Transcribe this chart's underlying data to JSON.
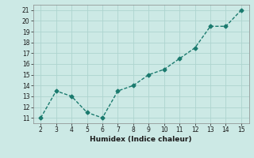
{
  "x": [
    2,
    3,
    4,
    5,
    6,
    7,
    8,
    9,
    10,
    11,
    12,
    13,
    14,
    15
  ],
  "y": [
    11,
    13.5,
    13,
    11.5,
    11,
    13.5,
    14,
    15,
    15.5,
    16.5,
    17.5,
    19.5,
    19.5,
    21
  ],
  "color": "#1a7a6e",
  "xlabel": "Humidex (Indice chaleur)",
  "xlim": [
    1.5,
    15.5
  ],
  "ylim": [
    10.5,
    21.5
  ],
  "xticks": [
    2,
    3,
    4,
    5,
    6,
    7,
    8,
    9,
    10,
    11,
    12,
    13,
    14,
    15
  ],
  "yticks": [
    11,
    12,
    13,
    14,
    15,
    16,
    17,
    18,
    19,
    20,
    21
  ],
  "bg_color": "#cce9e5",
  "grid_color": "#aed4cf",
  "marker": "D",
  "marker_size": 2.5,
  "line_width": 1.0,
  "tick_fontsize": 5.5,
  "xlabel_fontsize": 6.5
}
